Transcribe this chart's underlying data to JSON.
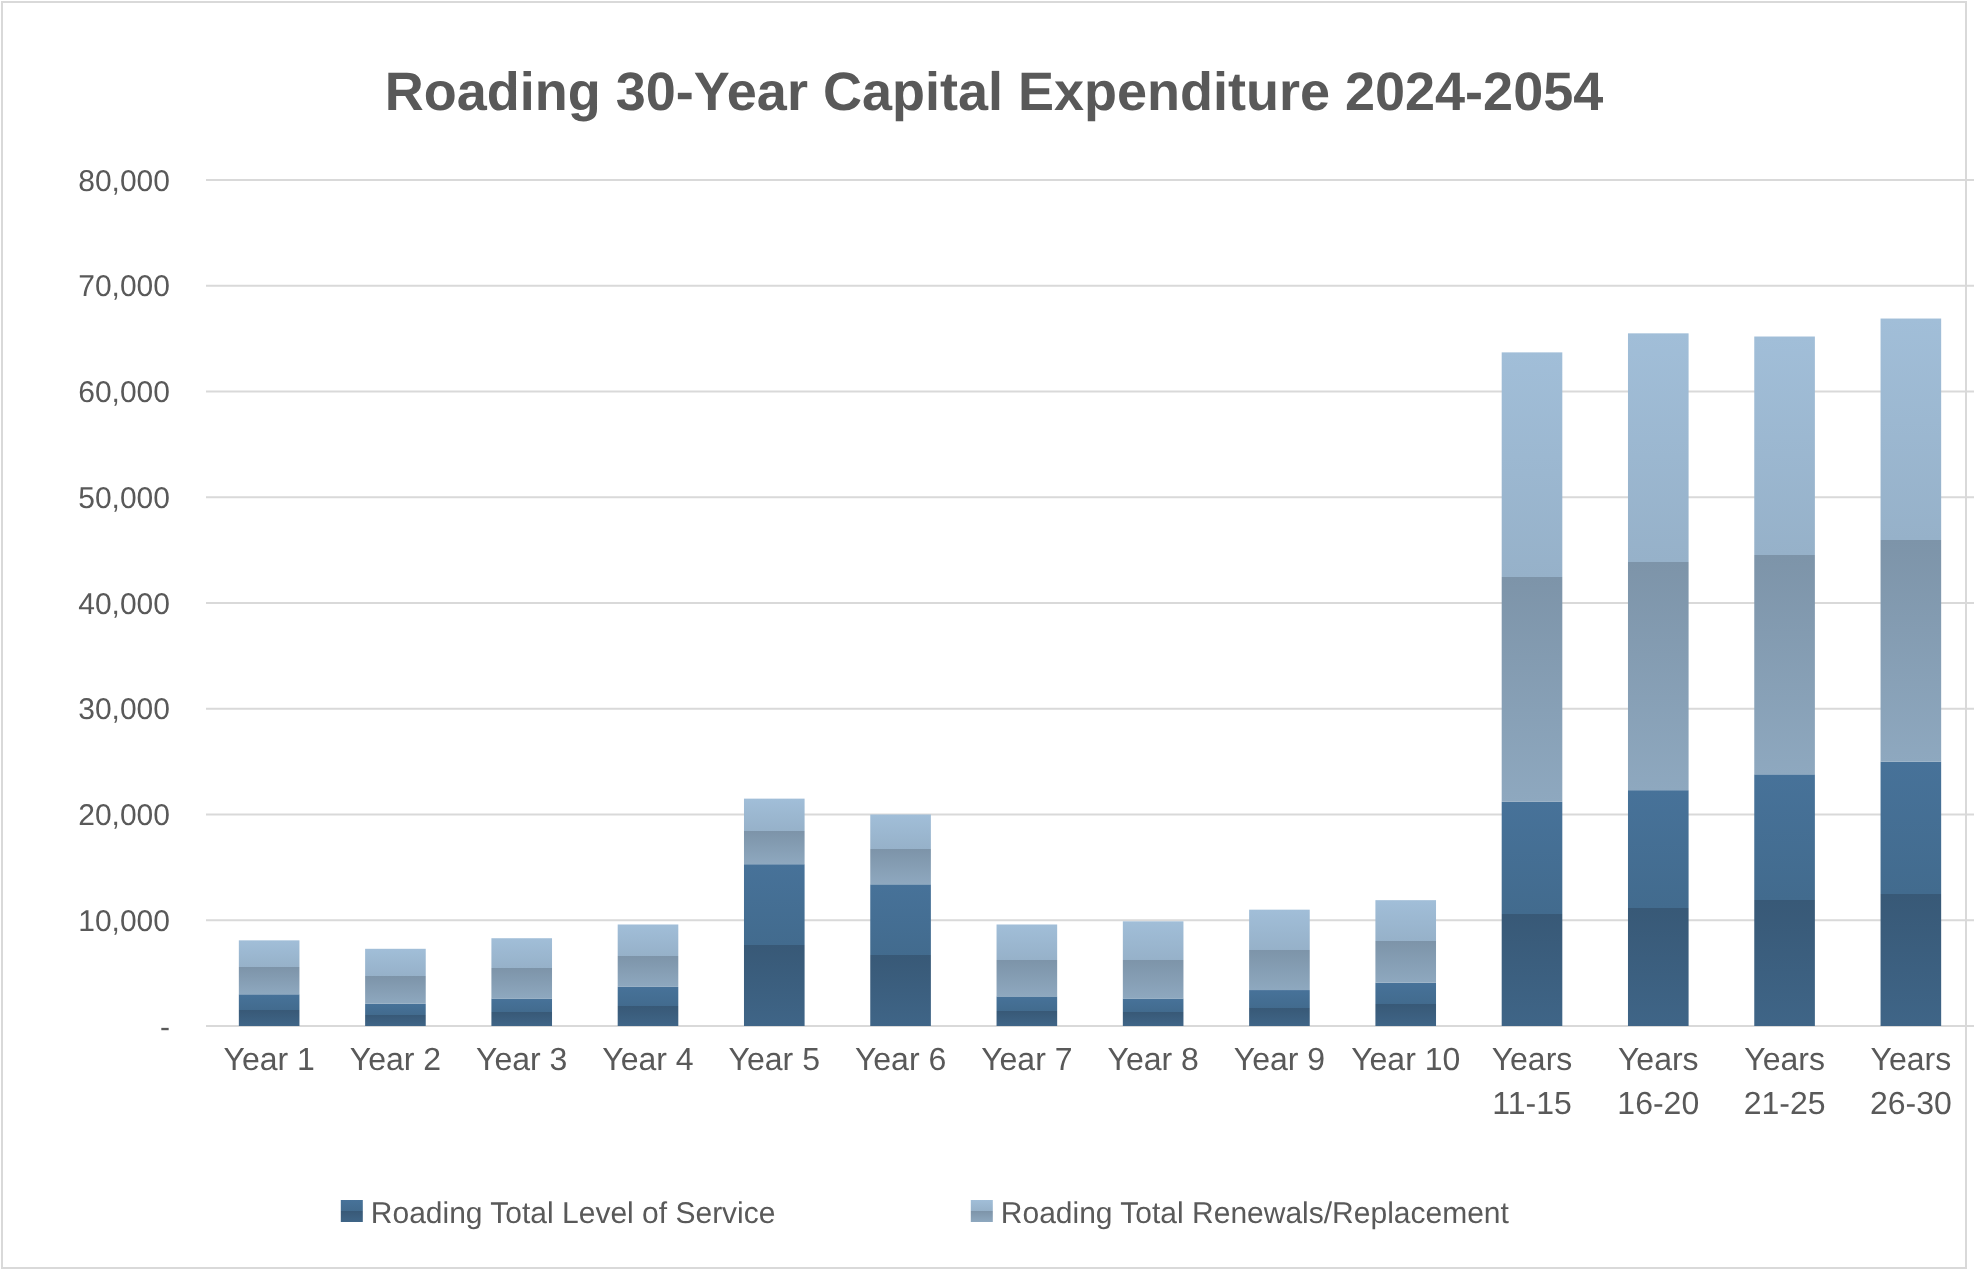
{
  "chart_data": {
    "type": "bar",
    "title": "Roading 30-Year Capital Expenditure 2024-2054",
    "stacked": true,
    "categories": [
      "Year 1",
      "Year 2",
      "Year 3",
      "Year 4",
      "Year 5",
      "Year 6",
      "Year 7",
      "Year 8",
      "Year 9",
      "Year 10",
      "Years 11-15",
      "Years 16-20",
      "Years 21-25",
      "Years 26-30"
    ],
    "series": [
      {
        "name": "Roading Total Level of Service",
        "color": "#3f6587",
        "values": [
          3000,
          2100,
          2600,
          3700,
          15300,
          13400,
          2800,
          2600,
          3400,
          4100,
          21200,
          22300,
          23800,
          25000
        ]
      },
      {
        "name": "Roading Total Renewals/Replacement",
        "color": "#8ea8bf",
        "values": [
          5100,
          5200,
          5700,
          5900,
          6200,
          6600,
          6800,
          7300,
          7600,
          7800,
          42500,
          43200,
          41400,
          41900
        ]
      }
    ],
    "ylim": [
      0,
      80000
    ],
    "yticks": [
      {
        "value": 0,
        "label": "-"
      },
      {
        "value": 10000,
        "label": "10,000"
      },
      {
        "value": 20000,
        "label": "20,000"
      },
      {
        "value": 30000,
        "label": "30,000"
      },
      {
        "value": 40000,
        "label": "40,000"
      },
      {
        "value": 50000,
        "label": "50,000"
      },
      {
        "value": 60000,
        "label": "60,000"
      },
      {
        "value": 70000,
        "label": "70,000"
      },
      {
        "value": 80000,
        "label": "80,000"
      }
    ],
    "grid": "y",
    "legend": "bottom"
  }
}
